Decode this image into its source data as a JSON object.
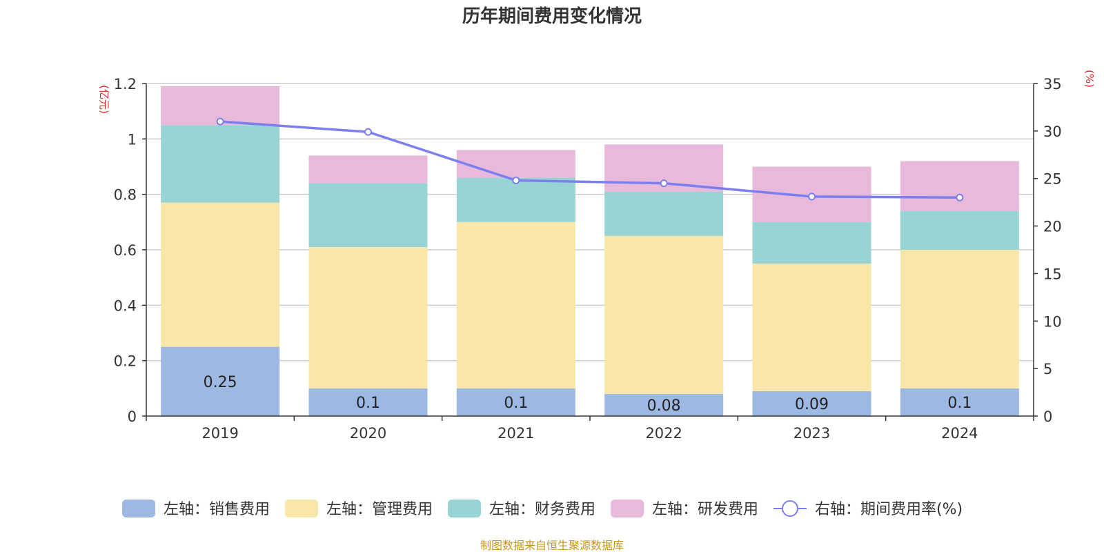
{
  "chart_data": {
    "type": "bar",
    "stacked": true,
    "title": "历年期间费用变化情况",
    "categories": [
      "2019",
      "2020",
      "2021",
      "2022",
      "2023",
      "2024"
    ],
    "series": [
      {
        "name": "左轴：销售费用",
        "axis": "left",
        "type": "bar",
        "color": "#9db8e2",
        "values": [
          0.25,
          0.1,
          0.1,
          0.08,
          0.09,
          0.1
        ],
        "labels": [
          "0.25",
          "0.1",
          "0.1",
          "0.08",
          "0.09",
          "0.1"
        ]
      },
      {
        "name": "左轴：管理费用",
        "axis": "left",
        "type": "bar",
        "color": "#f8e7a8",
        "values": [
          0.52,
          0.51,
          0.6,
          0.57,
          0.46,
          0.5
        ]
      },
      {
        "name": "左轴：财务费用",
        "axis": "left",
        "type": "bar",
        "color": "#99d4d5",
        "values": [
          0.28,
          0.23,
          0.16,
          0.16,
          0.15,
          0.14
        ]
      },
      {
        "name": "左轴：研发费用",
        "axis": "left",
        "type": "bar",
        "color": "#e8b9da",
        "values": [
          0.14,
          0.1,
          0.1,
          0.17,
          0.2,
          0.18
        ]
      },
      {
        "name": "右轴：期间费用率(%)",
        "axis": "right",
        "type": "line",
        "color": "#7b7ff0",
        "values": [
          31.0,
          29.9,
          24.8,
          24.5,
          23.1,
          23.0
        ]
      }
    ],
    "left_axis": {
      "label": "(亿元)",
      "min": 0,
      "max": 1.2,
      "ticks": [
        "0",
        "0.2",
        "0.4",
        "0.6",
        "0.8",
        "1",
        "1.2"
      ],
      "tick_values": [
        0,
        0.2,
        0.4,
        0.6,
        0.8,
        1.0,
        1.2
      ]
    },
    "right_axis": {
      "label": "(%)",
      "min": 0,
      "max": 35,
      "ticks": [
        "0",
        "5",
        "10",
        "15",
        "20",
        "25",
        "30",
        "35"
      ],
      "tick_values": [
        0,
        5,
        10,
        15,
        20,
        25,
        30,
        35
      ]
    },
    "grid": true,
    "legend_position": "bottom",
    "source": "制图数据来自恒生聚源数据库"
  },
  "colors": {
    "axis_label": "#e0281e",
    "source": "#c8961e",
    "grid": "#cccccc",
    "axis_line": "#333333"
  }
}
